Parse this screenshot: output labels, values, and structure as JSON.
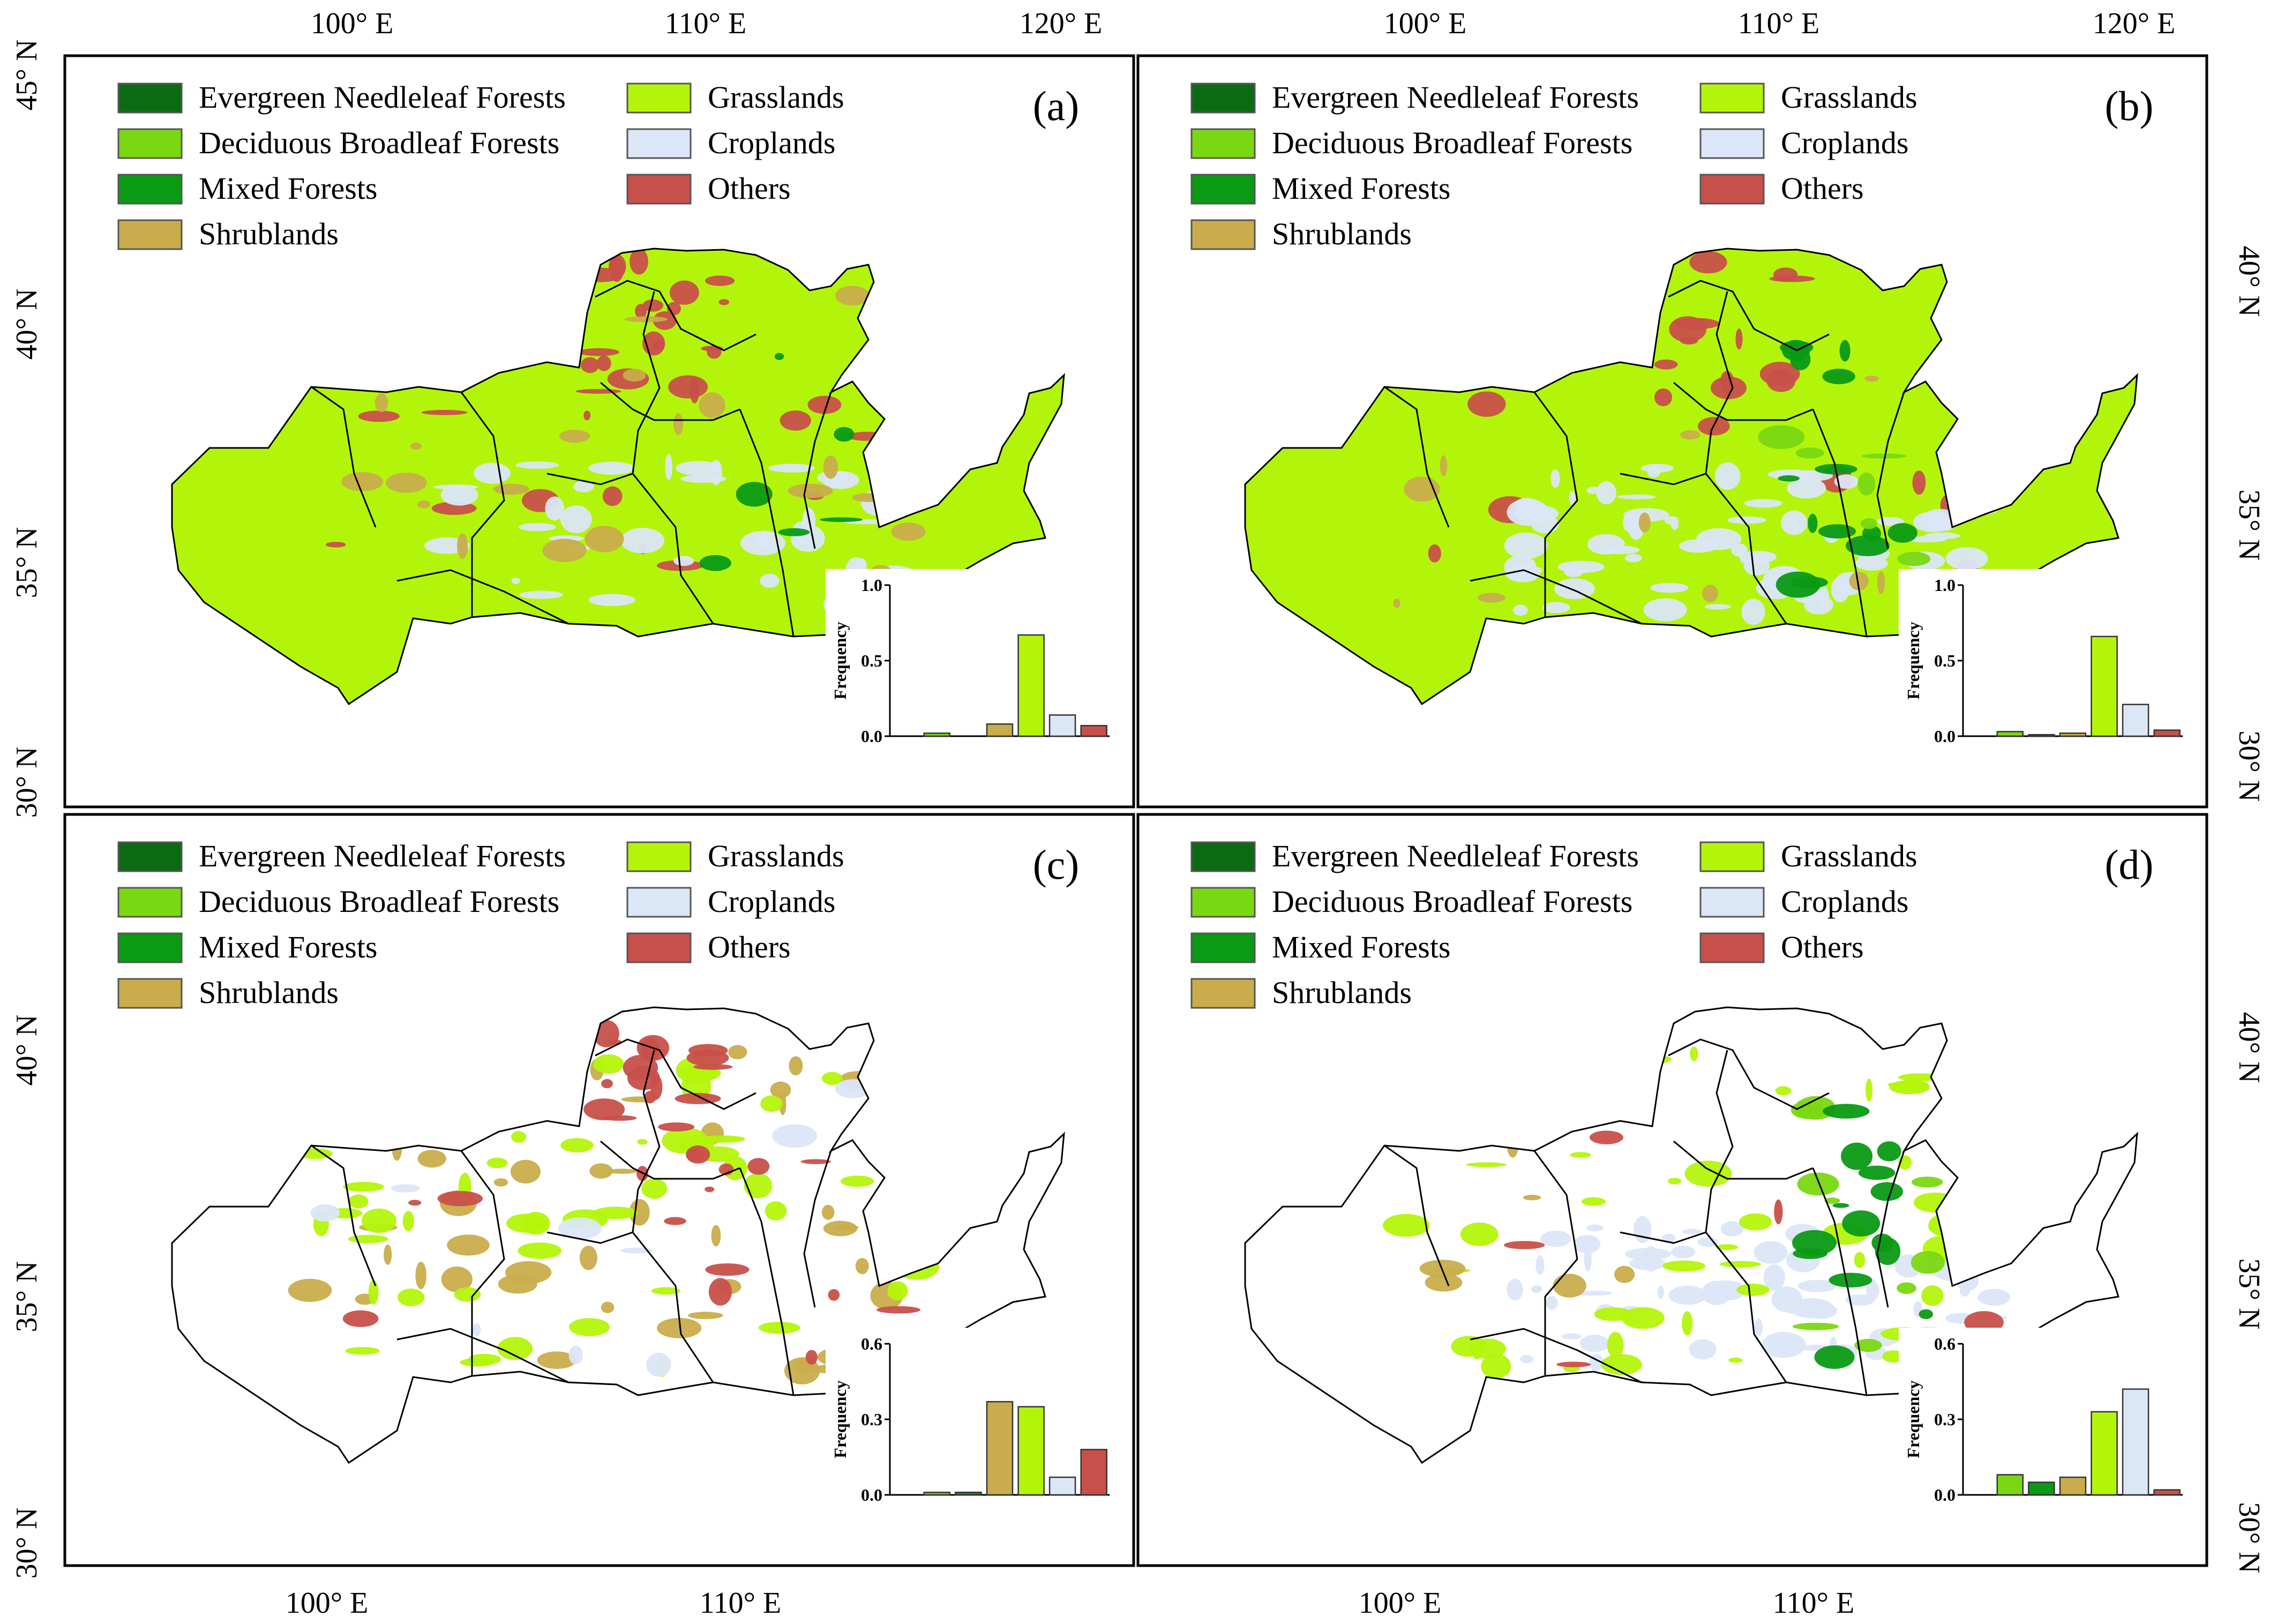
{
  "figure": {
    "top_lon_labels": [
      "100° E",
      "110° E",
      "120° E"
    ],
    "bottom_lon_labels": [
      "100° E",
      "110° E"
    ],
    "left_lat_labels": [
      "45° N",
      "40° N",
      "35° N",
      "30° N"
    ],
    "right_lat_labels": [
      "40° N",
      "35° N",
      "30° N"
    ]
  },
  "legend": {
    "items": [
      {
        "label": "Evergreen Needleleaf Forests",
        "color": "#0b6b12"
      },
      {
        "label": "Deciduous Broadleaf Forests",
        "color": "#7ad812"
      },
      {
        "label": "Mixed Forests",
        "color": "#0a9a14"
      },
      {
        "label": "Shrublands",
        "color": "#c9ad4c"
      },
      {
        "label": "Grasslands",
        "color": "#b3f50a"
      },
      {
        "label": "Croplands",
        "color": "#dbe6f7"
      },
      {
        "label": "Others",
        "color": "#c8504a"
      }
    ]
  },
  "panels": [
    {
      "id": "a",
      "label": "(a)"
    },
    {
      "id": "b",
      "label": "(b)"
    },
    {
      "id": "c",
      "label": "(c)"
    },
    {
      "id": "d",
      "label": "(d)"
    }
  ],
  "chart_data": [
    {
      "type": "bar",
      "panel": "(a)",
      "ylabel": "Frequency",
      "ylim": [
        0,
        1.0
      ],
      "yticks": [
        "0.0",
        "0.5",
        "1.0"
      ],
      "categories": [
        "Evergreen Needleleaf Forests",
        "Deciduous Broadleaf Forests",
        "Mixed Forests",
        "Shrublands",
        "Grasslands",
        "Croplands",
        "Others"
      ],
      "values": [
        0.0,
        0.02,
        0.0,
        0.08,
        0.67,
        0.14,
        0.07
      ]
    },
    {
      "type": "bar",
      "panel": "(b)",
      "ylabel": "Frequency",
      "ylim": [
        0,
        1.0
      ],
      "yticks": [
        "0.0",
        "0.5",
        "1.0"
      ],
      "categories": [
        "Evergreen Needleleaf Forests",
        "Deciduous Broadleaf Forests",
        "Mixed Forests",
        "Shrublands",
        "Grasslands",
        "Croplands",
        "Others"
      ],
      "values": [
        0.0,
        0.03,
        0.01,
        0.02,
        0.66,
        0.21,
        0.04
      ]
    },
    {
      "type": "bar",
      "panel": "(c)",
      "ylabel": "Frequency",
      "ylim": [
        0,
        0.6
      ],
      "yticks": [
        "0.0",
        "0.3",
        "0.6"
      ],
      "categories": [
        "Evergreen Needleleaf Forests",
        "Deciduous Broadleaf Forests",
        "Mixed Forests",
        "Shrublands",
        "Grasslands",
        "Croplands",
        "Others"
      ],
      "values": [
        0.0,
        0.01,
        0.01,
        0.37,
        0.35,
        0.07,
        0.18
      ]
    },
    {
      "type": "bar",
      "panel": "(d)",
      "ylabel": "Frequency",
      "ylim": [
        0,
        0.6
      ],
      "yticks": [
        "0.0",
        "0.3",
        "0.6"
      ],
      "categories": [
        "Evergreen Needleleaf Forests",
        "Deciduous Broadleaf Forests",
        "Mixed Forests",
        "Shrublands",
        "Grasslands",
        "Croplands",
        "Others"
      ],
      "values": [
        0.0,
        0.08,
        0.05,
        0.07,
        0.33,
        0.42,
        0.02
      ]
    }
  ]
}
